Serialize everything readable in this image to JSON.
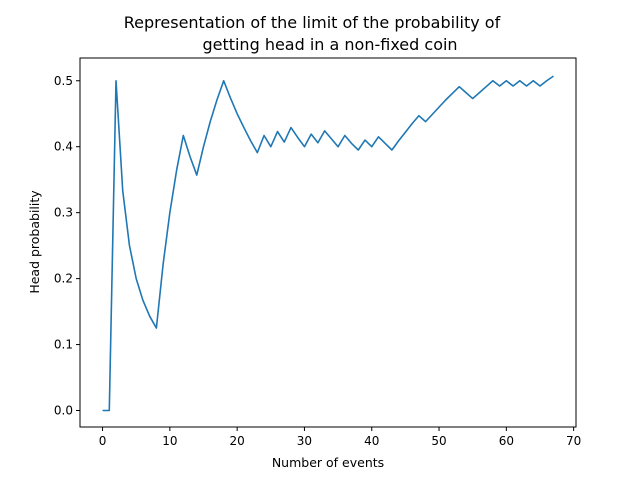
{
  "chart_data": {
    "type": "line",
    "title_line1": "Representation of the limit of the probability of",
    "title_line2": "getting head in a non-fixed coin",
    "xlabel": "Number of events",
    "ylabel": "Head probability",
    "xlim": [
      -3.35,
      70.35
    ],
    "ylim": [
      -0.025,
      0.5345
    ],
    "xticks": [
      0,
      10,
      20,
      30,
      40,
      50,
      60,
      70
    ],
    "xtick_labels": [
      "0",
      "10",
      "20",
      "30",
      "40",
      "50",
      "60",
      "70"
    ],
    "yticks": [
      0.0,
      0.1,
      0.2,
      0.3,
      0.4,
      0.5
    ],
    "ytick_labels": [
      "0.0",
      "0.1",
      "0.2",
      "0.3",
      "0.4",
      "0.5"
    ],
    "grid": false,
    "series": [
      {
        "color": "#1f77b4",
        "x": [
          0,
          1,
          2,
          3,
          4,
          5,
          6,
          7,
          8,
          9,
          10,
          11,
          12,
          13,
          14,
          15,
          16,
          17,
          18,
          19,
          20,
          21,
          22,
          23,
          24,
          25,
          26,
          27,
          28,
          29,
          30,
          31,
          32,
          33,
          34,
          35,
          36,
          37,
          38,
          39,
          40,
          41,
          42,
          43,
          44,
          45,
          46,
          47,
          48,
          49,
          50,
          51,
          52,
          53,
          54,
          55,
          56,
          57,
          58,
          59,
          60,
          61,
          62,
          63,
          64,
          65,
          66,
          67
        ],
        "y": [
          0.0,
          0.0,
          0.5,
          0.333,
          0.25,
          0.2,
          0.167,
          0.143,
          0.125,
          0.222,
          0.3,
          0.364,
          0.417,
          0.385,
          0.357,
          0.4,
          0.438,
          0.471,
          0.5,
          0.474,
          0.45,
          0.429,
          0.409,
          0.391,
          0.417,
          0.4,
          0.423,
          0.407,
          0.429,
          0.414,
          0.4,
          0.419,
          0.406,
          0.424,
          0.412,
          0.4,
          0.417,
          0.405,
          0.395,
          0.41,
          0.4,
          0.415,
          0.405,
          0.395,
          0.409,
          0.422,
          0.435,
          0.447,
          0.438,
          0.449,
          0.46,
          0.471,
          0.481,
          0.491,
          0.482,
          0.473,
          0.482,
          0.491,
          0.5,
          0.492,
          0.5,
          0.492,
          0.5,
          0.492,
          0.5,
          0.492,
          0.5,
          0.507
        ]
      }
    ]
  }
}
